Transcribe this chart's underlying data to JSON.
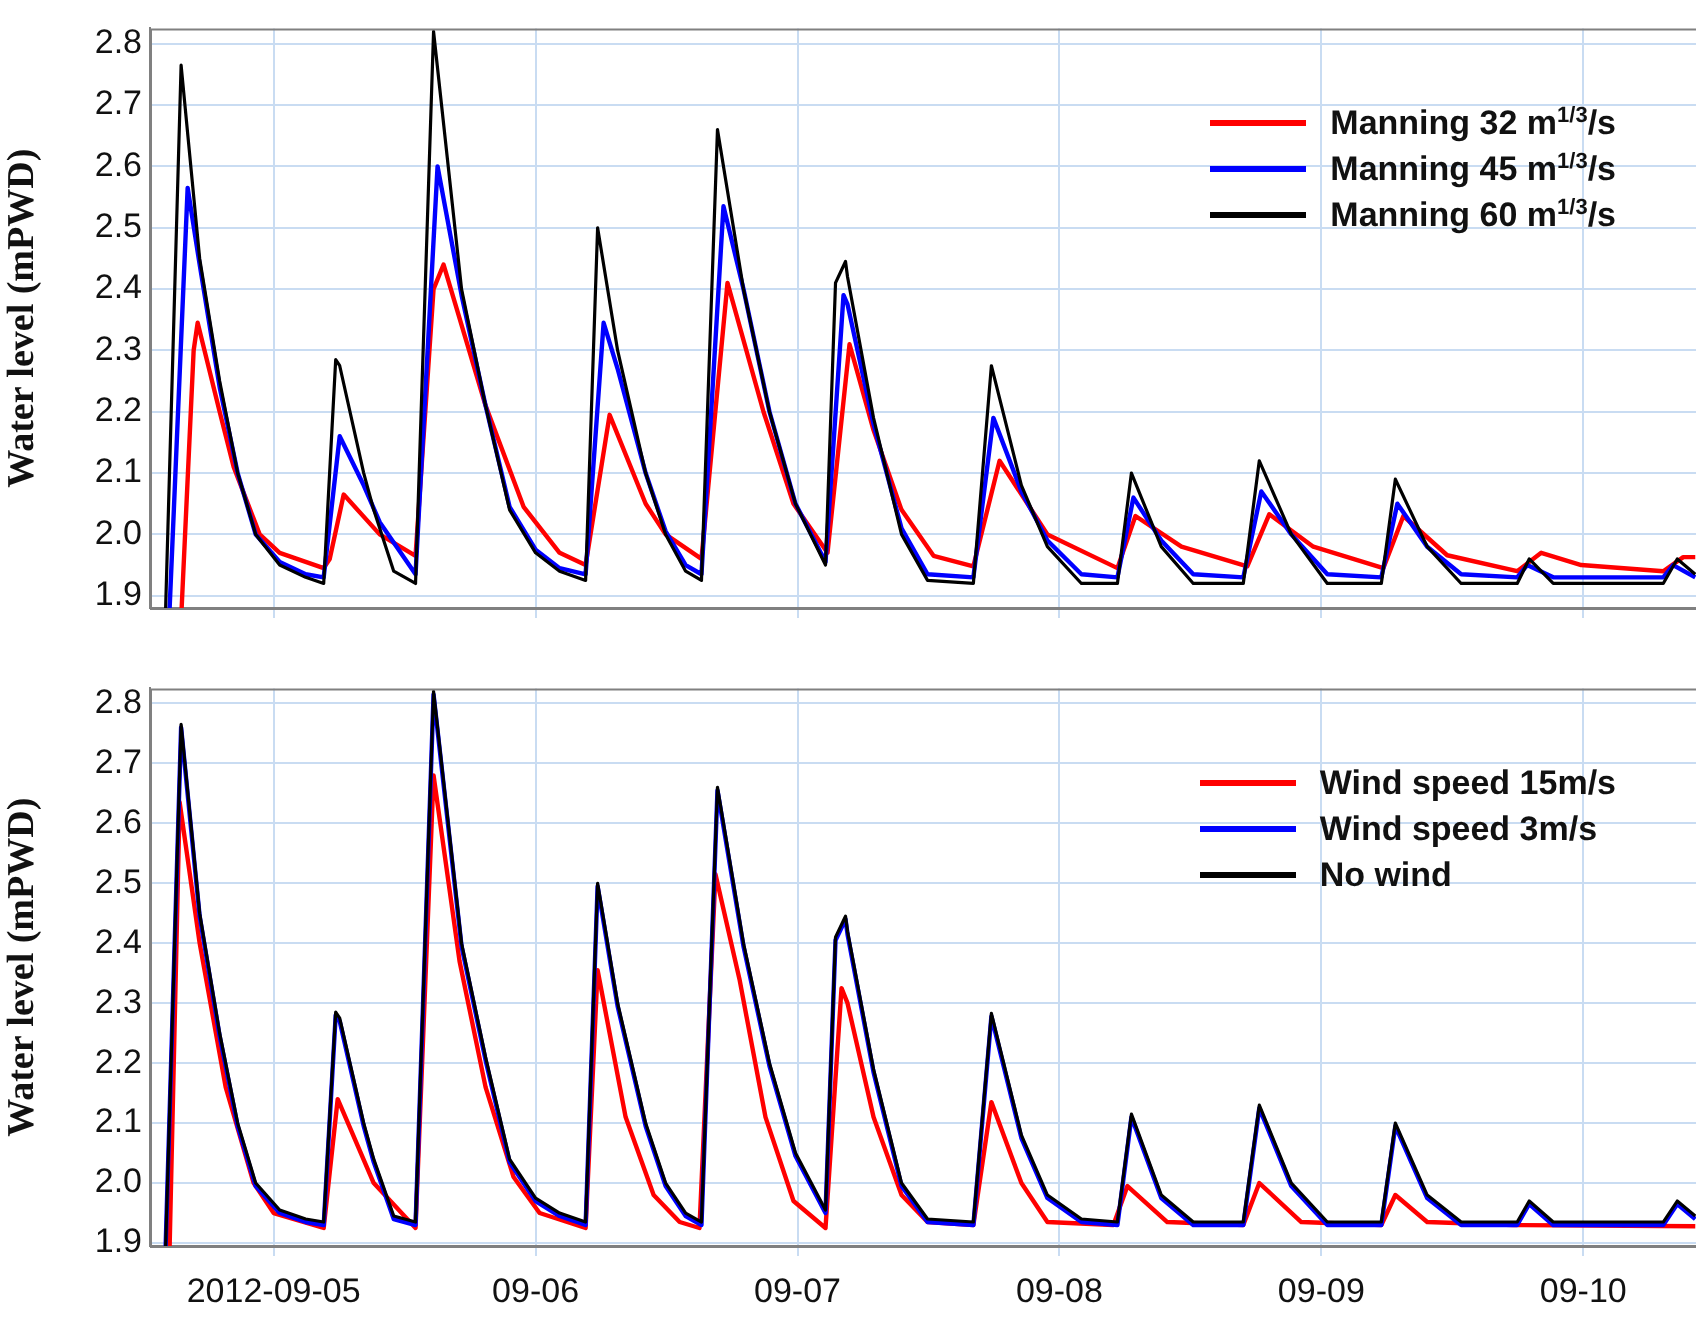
{
  "chart_data": [
    {
      "type": "line",
      "ylabel": "Water level (mPWD)",
      "xlim": [
        "2012-09-04T12:40",
        "2012-09-10T10:20"
      ],
      "xticks": [
        {
          "value": "2012-09-05",
          "label": null
        },
        {
          "value": "2012-09-06",
          "label": null
        },
        {
          "value": "2012-09-07",
          "label": null
        },
        {
          "value": "2012-09-08",
          "label": null
        },
        {
          "value": "2012-09-09",
          "label": null
        },
        {
          "value": "2012-09-10",
          "label": null
        }
      ],
      "ylim": [
        1.88,
        2.825
      ],
      "yticks": [
        1.9,
        {
          "value": 2,
          "label": "2.0"
        },
        2.1,
        2.2,
        2.3,
        2.4,
        2.5,
        2.6,
        2.7,
        2.8
      ],
      "tick_labels": "y",
      "grid": true,
      "legend": "top right",
      "marker": "none",
      "line_style": "solid",
      "series": [
        {
          "name": "Manning 32 m$^{1/3}$/s",
          "color": "#ff0000",
          "x": [
            "2012-09-04T15:34",
            "2012-09-04T16:40",
            "2012-09-04T17:02",
            "2012-09-04T19:03",
            "2012-09-04T20:20",
            "2012-09-04T22:43",
            "2012-09-05T00:33",
            "2012-09-05T04:35",
            "2012-09-05T05:08",
            "2012-09-05T06:25",
            "2012-09-05T09:43",
            "2012-09-05T13:00",
            "2012-09-05T14:39",
            "2012-09-05T15:34",
            "2012-09-05T19:25",
            "2012-09-05T22:54",
            "2012-09-06T02:12",
            "2012-09-06T04:35",
            "2012-09-06T06:47",
            "2012-09-06T10:05",
            "2012-09-06T11:55",
            "2012-09-06T15:12",
            "2012-09-06T17:35",
            "2012-09-06T20:53",
            "2012-09-06T23:38",
            "2012-09-07T02:45",
            "2012-09-07T04:46",
            "2012-09-07T06:58",
            "2012-09-07T09:32",
            "2012-09-07T12:28",
            "2012-09-07T16:07",
            "2012-09-07T18:31",
            "2012-09-07T22:54",
            "2012-09-08T05:19",
            "2012-09-08T06:58",
            "2012-09-08T11:11",
            "2012-09-08T17:13",
            "2012-09-08T19:14",
            "2012-09-08T23:16",
            "2012-09-09T05:41",
            "2012-09-09T07:31",
            "2012-09-09T11:32",
            "2012-09-09T17:57",
            "2012-09-09T20:09",
            "2012-09-09T23:49",
            "2012-09-10T07:20",
            "2012-09-10T09:10",
            "2012-09-10T10:16"
          ],
          "values": [
            1.88,
            2.3,
            2.345,
            2.2,
            2.11,
            2.0,
            1.97,
            1.945,
            1.96,
            2.065,
            2.0,
            1.965,
            2.4,
            2.44,
            2.21,
            2.045,
            1.97,
            1.95,
            2.195,
            2.05,
            2.0,
            1.96,
            2.41,
            2.2,
            2.05,
            1.97,
            2.31,
            2.17,
            2.04,
            1.965,
            1.948,
            2.12,
            2.0,
            1.945,
            2.03,
            1.98,
            1.948,
            2.033,
            1.98,
            1.945,
            2.03,
            1.966,
            1.94,
            1.97,
            1.95,
            1.94,
            1.963,
            1.963
          ]
        },
        {
          "name": "Manning 45 m$^{1/3}$/s",
          "color": "#0000ff",
          "x": [
            "2012-09-04T14:28",
            "2012-09-04T16:07",
            "2012-09-04T17:13",
            "2012-09-04T19:03",
            "2012-09-04T20:42",
            "2012-09-04T22:21",
            "2012-09-05T00:33",
            "2012-09-05T02:56",
            "2012-09-05T04:35",
            "2012-09-05T06:03",
            "2012-09-05T08:15",
            "2012-09-05T09:43",
            "2012-09-05T13:00",
            "2012-09-05T15:01",
            "2012-09-05T17:13",
            "2012-09-05T19:25",
            "2012-09-05T21:37",
            "2012-09-06T00:00",
            "2012-09-06T02:12",
            "2012-09-06T04:35",
            "2012-09-06T06:14",
            "2012-09-06T07:31",
            "2012-09-06T10:05",
            "2012-09-06T11:55",
            "2012-09-06T13:45",
            "2012-09-06T15:12",
            "2012-09-06T17:13",
            "2012-09-06T19:03",
            "2012-09-06T21:26",
            "2012-09-06T23:49",
            "2012-09-07T02:34",
            "2012-09-07T04:13",
            "2012-09-07T04:35",
            "2012-09-07T06:58",
            "2012-09-07T09:32",
            "2012-09-07T11:55",
            "2012-09-07T16:07",
            "2012-09-07T17:57",
            "2012-09-07T20:31",
            "2012-09-07T22:54",
            "2012-09-08T02:01",
            "2012-09-08T05:19",
            "2012-09-08T06:47",
            "2012-09-08T09:20",
            "2012-09-08T12:16",
            "2012-09-08T16:51",
            "2012-09-08T18:30",
            "2012-09-08T21:15",
            "2012-09-09T00:33",
            "2012-09-09T05:30",
            "2012-09-09T06:58",
            "2012-09-09T09:42",
            "2012-09-09T12:49",
            "2012-09-09T17:57",
            "2012-09-09T18:52",
            "2012-09-09T21:15",
            "2012-09-10T07:20",
            "2012-09-10T08:14",
            "2012-09-10T10:16"
          ],
          "values": [
            1.88,
            2.565,
            2.44,
            2.24,
            2.1,
            2.0,
            1.955,
            1.935,
            1.93,
            2.16,
            2.08,
            2.02,
            1.935,
            2.6,
            2.39,
            2.21,
            2.045,
            1.975,
            1.945,
            1.935,
            2.345,
            2.27,
            2.1,
            2.005,
            1.95,
            1.935,
            2.535,
            2.4,
            2.2,
            2.05,
            1.955,
            2.39,
            2.375,
            2.18,
            2.01,
            1.935,
            1.93,
            2.19,
            2.07,
            1.99,
            1.935,
            1.93,
            2.06,
            1.99,
            1.935,
            1.93,
            2.07,
            2.0,
            1.935,
            1.93,
            2.05,
            1.98,
            1.935,
            1.93,
            1.95,
            1.93,
            1.93,
            1.95,
            1.93
          ]
        },
        {
          "name": "Manning 60 m$^{1/3}$/s",
          "color": "#000000",
          "x": [
            "2012-09-04T14:06",
            "2012-09-04T15:31",
            "2012-09-04T17:13",
            "2012-09-04T19:03",
            "2012-09-04T20:42",
            "2012-09-04T22:21",
            "2012-09-05T00:33",
            "2012-09-05T02:56",
            "2012-09-05T04:35",
            "2012-09-05T05:41",
            "2012-09-05T06:03",
            "2012-09-05T08:15",
            "2012-09-05T09:10",
            "2012-09-05T11:00",
            "2012-09-05T13:00",
            "2012-09-05T14:39",
            "2012-09-05T17:13",
            "2012-09-05T19:25",
            "2012-09-05T21:37",
            "2012-09-06T00:00",
            "2012-09-06T02:12",
            "2012-09-06T04:35",
            "2012-09-06T05:41",
            "2012-09-06T07:31",
            "2012-09-06T10:05",
            "2012-09-06T11:55",
            "2012-09-06T13:45",
            "2012-09-06T15:12",
            "2012-09-06T16:40",
            "2012-09-06T19:03",
            "2012-09-06T21:26",
            "2012-09-06T23:49",
            "2012-09-07T02:34",
            "2012-09-07T03:29",
            "2012-09-07T04:24",
            "2012-09-07T04:35",
            "2012-09-07T06:58",
            "2012-09-07T09:32",
            "2012-09-07T11:55",
            "2012-09-07T16:07",
            "2012-09-07T17:46",
            "2012-09-07T20:31",
            "2012-09-07T22:54",
            "2012-09-08T02:01",
            "2012-09-08T05:19",
            "2012-09-08T06:36",
            "2012-09-08T09:20",
            "2012-09-08T12:16",
            "2012-09-08T16:51",
            "2012-09-08T18:19",
            "2012-09-08T21:15",
            "2012-09-09T00:33",
            "2012-09-09T05:30",
            "2012-09-09T06:47",
            "2012-09-09T09:42",
            "2012-09-09T12:49",
            "2012-09-09T17:57",
            "2012-09-09T19:03",
            "2012-09-09T21:15",
            "2012-09-10T07:20",
            "2012-09-10T08:37",
            "2012-09-10T10:16"
          ],
          "values": [
            1.88,
            2.765,
            2.45,
            2.25,
            2.1,
            2.0,
            1.95,
            1.93,
            1.92,
            2.285,
            2.275,
            2.1,
            2.04,
            1.94,
            1.92,
            2.82,
            2.4,
            2.21,
            2.04,
            1.97,
            1.94,
            1.925,
            2.5,
            2.3,
            2.1,
            2.0,
            1.94,
            1.925,
            2.66,
            2.4,
            2.2,
            2.05,
            1.95,
            2.41,
            2.445,
            2.42,
            2.19,
            2.0,
            1.925,
            1.92,
            2.275,
            2.08,
            1.98,
            1.92,
            1.92,
            2.1,
            1.98,
            1.92,
            1.92,
            2.12,
            2.0,
            1.92,
            1.92,
            2.09,
            1.98,
            1.92,
            1.92,
            1.96,
            1.92,
            1.92,
            1.96,
            1.935
          ]
        }
      ]
    },
    {
      "type": "line",
      "ylabel": "Water level (mPWD)",
      "xlim": [
        "2012-09-04T12:40",
        "2012-09-10T10:20"
      ],
      "xticks": [
        {
          "value": "2012-09-05",
          "label": "2012-09-05"
        },
        {
          "value": "2012-09-06",
          "label": "09-06"
        },
        {
          "value": "2012-09-07",
          "label": "09-07"
        },
        {
          "value": "2012-09-08",
          "label": "09-08"
        },
        {
          "value": "2012-09-09",
          "label": "09-09"
        },
        {
          "value": "2012-09-10",
          "label": "09-10"
        }
      ],
      "ylim": [
        1.895,
        2.825
      ],
      "yticks": [
        1.9,
        {
          "value": 2,
          "label": "2.0"
        },
        2.1,
        2.2,
        2.3,
        2.4,
        2.5,
        2.6,
        2.7,
        2.8
      ],
      "grid": true,
      "legend": "top right",
      "marker": "none",
      "line_style": "solid",
      "series": [
        {
          "name": "Wind speed 15m/s",
          "color": "#ff0000",
          "x": [
            "2012-09-04T14:28",
            "2012-09-04T15:23",
            "2012-09-04T17:13",
            "2012-09-04T19:36",
            "2012-09-04T22:10",
            "2012-09-05T00:00",
            "2012-09-05T04:35",
            "2012-09-05T05:52",
            "2012-09-05T09:10",
            "2012-09-05T13:00",
            "2012-09-05T14:39",
            "2012-09-05T17:02",
            "2012-09-05T19:25",
            "2012-09-05T21:59",
            "2012-09-06T00:22",
            "2012-09-06T04:35",
            "2012-09-06T05:41",
            "2012-09-06T08:15",
            "2012-09-06T10:49",
            "2012-09-06T13:12",
            "2012-09-06T15:01",
            "2012-09-06T16:29",
            "2012-09-06T18:41",
            "2012-09-06T21:04",
            "2012-09-06T23:38",
            "2012-09-07T02:34",
            "2012-09-07T04:02",
            "2012-09-07T04:35",
            "2012-09-07T06:58",
            "2012-09-07T09:32",
            "2012-09-07T11:55",
            "2012-09-07T16:07",
            "2012-09-07T17:46",
            "2012-09-07T20:31",
            "2012-09-07T22:54",
            "2012-09-08T04:57",
            "2012-09-08T06:14",
            "2012-09-08T09:53",
            "2012-09-08T16:51",
            "2012-09-08T18:19",
            "2012-09-08T22:10",
            "2012-09-09T05:30",
            "2012-09-09T06:47",
            "2012-09-09T09:42",
            "2012-09-09T17:35",
            "2012-09-10T10:16"
          ],
          "values": [
            1.895,
            2.635,
            2.4,
            2.16,
            2.0,
            1.95,
            1.925,
            2.14,
            2.0,
            1.925,
            2.68,
            2.37,
            2.16,
            2.01,
            1.95,
            1.925,
            2.355,
            2.11,
            1.98,
            1.935,
            1.925,
            2.515,
            2.34,
            2.11,
            1.97,
            1.925,
            2.325,
            2.3,
            2.11,
            1.98,
            1.935,
            1.93,
            2.135,
            2.0,
            1.935,
            1.93,
            1.995,
            1.935,
            1.93,
            2.0,
            1.935,
            1.93,
            1.98,
            1.935,
            1.93,
            1.928
          ]
        },
        {
          "name": "Wind speed 3m/s",
          "color": "#0000ff",
          "x": [
            "2012-09-04T14:06",
            "2012-09-04T15:31",
            "2012-09-04T17:13",
            "2012-09-04T19:03",
            "2012-09-04T20:42",
            "2012-09-04T22:21",
            "2012-09-05T00:33",
            "2012-09-05T02:56",
            "2012-09-05T04:35",
            "2012-09-05T05:41",
            "2012-09-05T06:03",
            "2012-09-05T08:15",
            "2012-09-05T09:10",
            "2012-09-05T11:00",
            "2012-09-05T13:00",
            "2012-09-05T14:39",
            "2012-09-05T17:13",
            "2012-09-05T19:25",
            "2012-09-05T21:37",
            "2012-09-06T00:00",
            "2012-09-06T02:12",
            "2012-09-06T04:35",
            "2012-09-06T05:41",
            "2012-09-06T07:31",
            "2012-09-06T10:05",
            "2012-09-06T11:55",
            "2012-09-06T13:45",
            "2012-09-06T15:12",
            "2012-09-06T16:40",
            "2012-09-06T19:03",
            "2012-09-06T21:26",
            "2012-09-06T23:49",
            "2012-09-07T02:34",
            "2012-09-07T03:29",
            "2012-09-07T04:24",
            "2012-09-07T04:35",
            "2012-09-07T06:58",
            "2012-09-07T09:32",
            "2012-09-07T11:55",
            "2012-09-07T16:07",
            "2012-09-07T17:46",
            "2012-09-07T20:31",
            "2012-09-07T22:54",
            "2012-09-08T02:01",
            "2012-09-08T05:19",
            "2012-09-08T06:36",
            "2012-09-08T09:20",
            "2012-09-08T12:16",
            "2012-09-08T16:51",
            "2012-09-08T18:19",
            "2012-09-08T21:15",
            "2012-09-09T00:33",
            "2012-09-09T05:30",
            "2012-09-09T06:47",
            "2012-09-09T09:42",
            "2012-09-09T12:49",
            "2012-09-09T17:57",
            "2012-09-09T19:03",
            "2012-09-09T21:15",
            "2012-09-10T07:20",
            "2012-09-10T08:37",
            "2012-09-10T10:16"
          ],
          "values": [
            1.895,
            2.76,
            2.445,
            2.245,
            2.095,
            1.995,
            1.95,
            1.935,
            1.93,
            2.28,
            2.27,
            2.095,
            2.035,
            1.94,
            1.93,
            2.815,
            2.395,
            2.205,
            2.035,
            1.97,
            1.945,
            1.93,
            2.495,
            2.295,
            2.095,
            1.995,
            1.945,
            1.93,
            2.655,
            2.395,
            2.195,
            2.045,
            1.95,
            2.405,
            2.44,
            2.415,
            2.185,
            1.995,
            1.935,
            1.93,
            2.278,
            2.075,
            1.975,
            1.935,
            1.93,
            2.11,
            1.975,
            1.93,
            1.93,
            2.125,
            1.995,
            1.93,
            1.93,
            2.095,
            1.975,
            1.93,
            1.93,
            1.965,
            1.93,
            1.93,
            1.965,
            1.94
          ]
        },
        {
          "name": "No wind",
          "color": "#000000",
          "x": [
            "2012-09-04T14:06",
            "2012-09-04T15:31",
            "2012-09-04T17:13",
            "2012-09-04T19:03",
            "2012-09-04T20:42",
            "2012-09-04T22:21",
            "2012-09-05T00:33",
            "2012-09-05T02:56",
            "2012-09-05T04:35",
            "2012-09-05T05:41",
            "2012-09-05T06:03",
            "2012-09-05T08:15",
            "2012-09-05T09:10",
            "2012-09-05T11:00",
            "2012-09-05T13:00",
            "2012-09-05T14:39",
            "2012-09-05T17:13",
            "2012-09-05T19:25",
            "2012-09-05T21:37",
            "2012-09-06T00:00",
            "2012-09-06T02:12",
            "2012-09-06T04:35",
            "2012-09-06T05:41",
            "2012-09-06T07:31",
            "2012-09-06T10:05",
            "2012-09-06T11:55",
            "2012-09-06T13:45",
            "2012-09-06T15:12",
            "2012-09-06T16:40",
            "2012-09-06T19:03",
            "2012-09-06T21:26",
            "2012-09-06T23:49",
            "2012-09-07T02:34",
            "2012-09-07T03:29",
            "2012-09-07T04:24",
            "2012-09-07T04:35",
            "2012-09-07T06:58",
            "2012-09-07T09:32",
            "2012-09-07T11:55",
            "2012-09-07T16:07",
            "2012-09-07T17:46",
            "2012-09-07T20:31",
            "2012-09-07T22:54",
            "2012-09-08T02:01",
            "2012-09-08T05:19",
            "2012-09-08T06:36",
            "2012-09-08T09:20",
            "2012-09-08T12:16",
            "2012-09-08T16:51",
            "2012-09-08T18:19",
            "2012-09-08T21:15",
            "2012-09-09T00:33",
            "2012-09-09T05:30",
            "2012-09-09T06:47",
            "2012-09-09T09:42",
            "2012-09-09T12:49",
            "2012-09-09T17:57",
            "2012-09-09T19:03",
            "2012-09-09T21:15",
            "2012-09-10T07:20",
            "2012-09-10T08:37",
            "2012-09-10T10:16"
          ],
          "values": [
            1.895,
            2.765,
            2.45,
            2.25,
            2.1,
            2.0,
            1.955,
            1.94,
            1.935,
            2.285,
            2.275,
            2.1,
            2.04,
            1.945,
            1.935,
            2.82,
            2.4,
            2.21,
            2.04,
            1.975,
            1.95,
            1.935,
            2.5,
            2.3,
            2.1,
            2.0,
            1.95,
            1.935,
            2.66,
            2.4,
            2.2,
            2.05,
            1.955,
            2.41,
            2.445,
            2.42,
            2.19,
            2.0,
            1.94,
            1.935,
            2.283,
            2.08,
            1.98,
            1.94,
            1.935,
            2.115,
            1.98,
            1.935,
            1.935,
            2.13,
            2.0,
            1.935,
            1.935,
            2.1,
            1.98,
            1.935,
            1.935,
            1.97,
            1.935,
            1.935,
            1.97,
            1.945
          ]
        }
      ]
    }
  ]
}
